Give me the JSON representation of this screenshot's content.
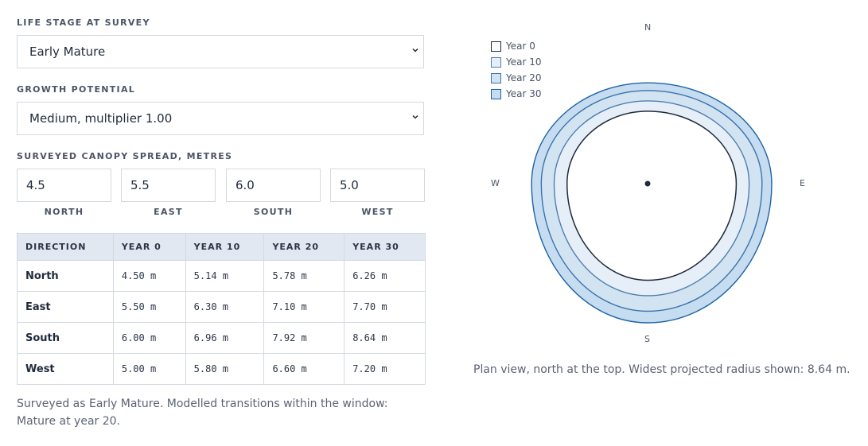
{
  "life_stage": {
    "label": "LIFE STAGE AT SURVEY",
    "selected": "Early Mature"
  },
  "growth": {
    "label": "GROWTH POTENTIAL",
    "selected": "Medium, multiplier 1.00"
  },
  "spread": {
    "label": "SURVEYED CANOPY SPREAD, METRES",
    "inputs": [
      {
        "value": "4.5",
        "label": "NORTH"
      },
      {
        "value": "5.5",
        "label": "EAST"
      },
      {
        "value": "6.0",
        "label": "SOUTH"
      },
      {
        "value": "5.0",
        "label": "WEST"
      }
    ]
  },
  "table": {
    "headers": [
      "DIRECTION",
      "YEAR 0",
      "YEAR 10",
      "YEAR 20",
      "YEAR 30"
    ],
    "rows": [
      [
        "North",
        "4.50 m",
        "5.14 m",
        "5.78 m",
        "6.26 m"
      ],
      [
        "East",
        "5.50 m",
        "6.30 m",
        "7.10 m",
        "7.70 m"
      ],
      [
        "South",
        "6.00 m",
        "6.96 m",
        "7.92 m",
        "8.64 m"
      ],
      [
        "West",
        "5.00 m",
        "5.80 m",
        "6.60 m",
        "7.20 m"
      ]
    ]
  },
  "note": "Surveyed as Early Mature. Modelled transitions within the window: Mature at year 20.",
  "plan": {
    "compass": {
      "n": "N",
      "e": "E",
      "s": "S",
      "w": "W"
    },
    "legend": [
      {
        "label": "Year 0",
        "fill": "#ffffff",
        "stroke": "#1f2a3a"
      },
      {
        "label": "Year 10",
        "fill": "#e6eff8",
        "stroke": "#4f7fae"
      },
      {
        "label": "Year 20",
        "fill": "#d2e3f2",
        "stroke": "#3a73aa"
      },
      {
        "label": "Year 30",
        "fill": "#c6dcf0",
        "stroke": "#1d63a6"
      }
    ],
    "radii": {
      "year0": {
        "n": 4.5,
        "e": 5.5,
        "s": 6.0,
        "w": 5.0
      },
      "year10": {
        "n": 5.14,
        "e": 6.3,
        "s": 6.96,
        "w": 5.8
      },
      "year20": {
        "n": 5.78,
        "e": 7.1,
        "s": 7.92,
        "w": 6.6
      },
      "year30": {
        "n": 6.26,
        "e": 7.7,
        "s": 8.64,
        "w": 7.2
      }
    },
    "caption": "Plan view, north at the top. Widest projected radius shown: 8.64 m."
  }
}
